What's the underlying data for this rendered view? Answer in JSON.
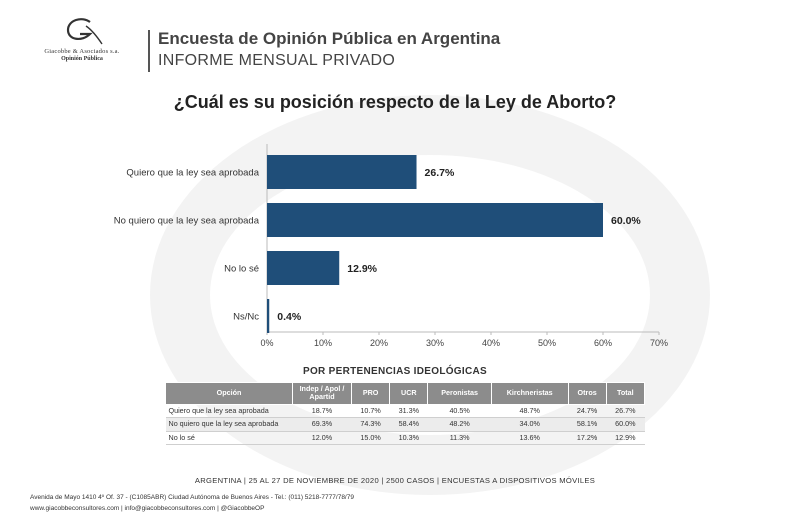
{
  "header": {
    "logo_firm": "Giacobbe & Asociados s.a.",
    "logo_sub": "Opinión Pública",
    "title": "Encuesta de Opinión Pública en Argentina",
    "subtitle": "INFORME MENSUAL PRIVADO"
  },
  "chart_data": {
    "type": "bar",
    "orientation": "horizontal",
    "title": "¿Cuál es su posición respecto de la Ley de Aborto?",
    "categories": [
      "Quiero que la ley sea aprobada",
      "No quiero que la ley sea aprobada",
      "No lo sé",
      "Ns/Nc"
    ],
    "values": [
      26.7,
      60.0,
      12.9,
      0.4
    ],
    "value_labels": [
      "26.7%",
      "60.0%",
      "12.9%",
      "0.4%"
    ],
    "xlim": [
      0,
      70
    ],
    "xticks": [
      "0%",
      "10%",
      "20%",
      "30%",
      "40%",
      "50%",
      "60%",
      "70%"
    ],
    "bar_color": "#1f4e79"
  },
  "table": {
    "section_title": "POR PERTENENCIAS IDEOLÓGICAS",
    "headers": [
      "Opción",
      "Indep / Apol / Apartid",
      "PRO",
      "UCR",
      "Peronistas",
      "Kirchneristas",
      "Otros",
      "Total"
    ],
    "rows": [
      [
        "Quiero que la ley sea aprobada",
        "18.7%",
        "10.7%",
        "31.3%",
        "40.5%",
        "48.7%",
        "24.7%",
        "26.7%"
      ],
      [
        "No quiero que la ley sea aprobada",
        "69.3%",
        "74.3%",
        "58.4%",
        "48.2%",
        "34.0%",
        "58.1%",
        "60.0%"
      ],
      [
        "No lo sé",
        "12.0%",
        "15.0%",
        "10.3%",
        "11.3%",
        "13.6%",
        "17.2%",
        "12.9%"
      ]
    ]
  },
  "footer": {
    "line": "ARGENTINA  |  25 AL 27 DE NOVIEMBRE DE 2020  |  2500 CASOS  |  ENCUESTAS  A DISPOSITIVOS MÓVILES",
    "address": "Avenida de Mayo 1410 4º Of. 37 - (C1085ABR) Ciudad Autónoma de Buenos Aires - Tel.: (011) 5218-7777/78/79",
    "contacts": "www.giacobbeconsultores.com | info@giacobbeconsultores.com | @GiacobbeOP"
  }
}
